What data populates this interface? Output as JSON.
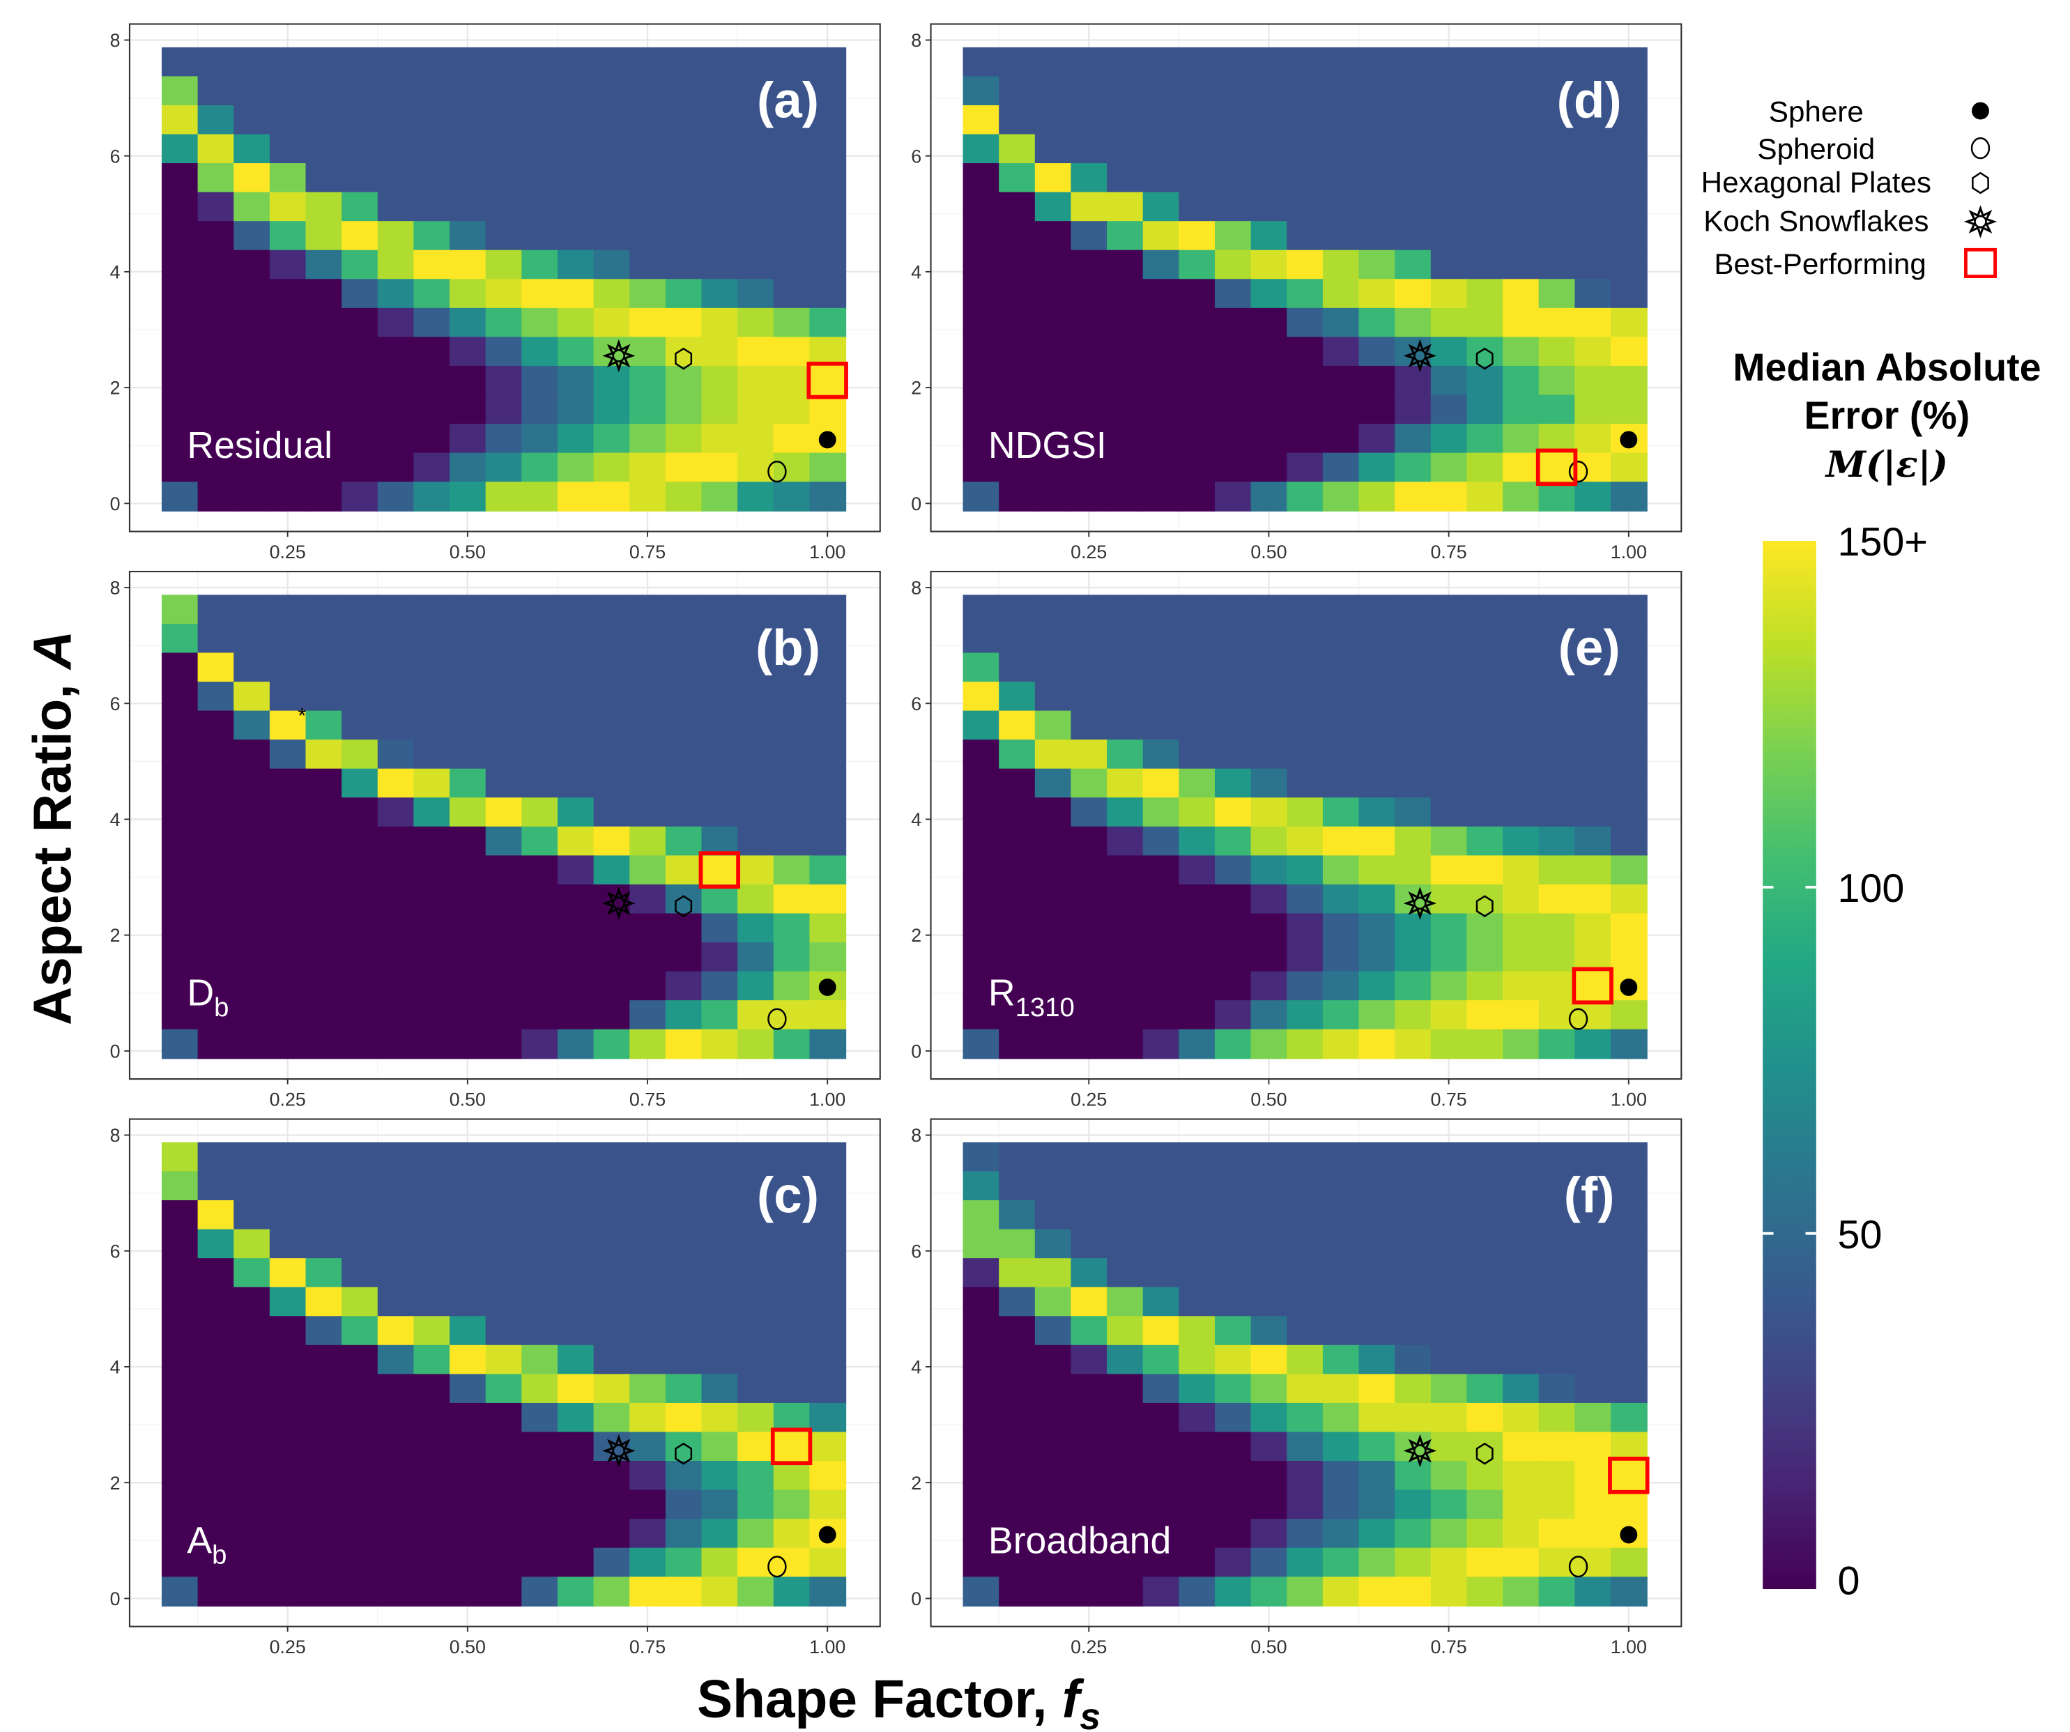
{
  "chart_data": {
    "type": "heatmap",
    "xlabel_prefix": "Shape Factor, ",
    "xlabel_var": "f",
    "xlabel_sub": "s",
    "ylabel_prefix": "Aspect Ratio, ",
    "ylabel_var": "A",
    "xlim": [
      0.075,
      1.025
    ],
    "ylim": [
      -0.125,
      8
    ],
    "x_ticks": [
      {
        "value": 0.25,
        "label": "0.25"
      },
      {
        "value": 0.5,
        "label": "0.50"
      },
      {
        "value": 0.75,
        "label": "0.75"
      },
      {
        "value": 1.0,
        "label": "1.00"
      }
    ],
    "y_ticks": [
      {
        "value": 0,
        "label": "0"
      },
      {
        "value": 2,
        "label": "2"
      },
      {
        "value": 4,
        "label": "4"
      },
      {
        "value": 6,
        "label": "6"
      },
      {
        "value": 8,
        "label": "8"
      }
    ],
    "grid": true,
    "cell_x_start": 0.1,
    "cell_x_step": 0.05,
    "cell_y_start": 0.125,
    "cell_y_step": 0.5,
    "grid_row_order": "top-to-bottom",
    "level_values": {
      "0": 0,
      "1": 9,
      "2": 18,
      "3": 30,
      "4": 50,
      "5": 70,
      "6": 80,
      "7": 93,
      "8": 105,
      "9": 132,
      "P": 150,
      "N": 111
    },
    "panels": [
      {
        "tag": "(a)",
        "method": "Residual",
        "method_sub": "",
        "best": [
          1.0,
          2.125
        ],
        "grid": [
          "NNNNNNNNNNNNNNNNNNN",
          "3NNNNNNNNNNNNNNNNNN",
          "16NNNNNNNNNNNNNNNNN",
          "515NNNNNNNNNNNNNNNN",
          "P303NNNNNNNNNNNNNNN",
          "P93124NNNNNNNNNNNNN",
          "PP8420247NNNNNNNNNN",
          "PPP9742002467NNNNNN",
          "PPPPP864210023467NN",
          "PPPPPP9864321001234",
          "PPPPPPPP98543311001",
          "PPPPPPPPP9875432110",
          "PPPPPPPPP9875432110",
          "PPPPPPPP98754321100",
          "PPPPPPP976432100123",
          "8PPPP98652200123567"
        ]
      },
      {
        "tag": "(d)",
        "method": "NDGSI",
        "method_sub": "",
        "best": [
          0.9,
          0.625
        ],
        "grid": [
          "NNNNNNNNNNNNNNNNNNN",
          "7NNNNNNNNNNNNNNNNNN",
          "0NNNNNNNNNNNNNNNNNN",
          "52NNNNNNNNNNNNNNNNN",
          "P405NNNNNNNNNNNNNNN",
          "PP5115NNNNNNNNNNNNN",
          "PPP841035NNNNNNNNNN",
          "PPPPP74210234NNNNNN",
          "PPPPPPP85421012038N",
          "PPPPPPPPP8743220001",
          "PPPPPPPPPP987543210",
          "PPPPPPPPPPPP9764322",
          "PPPPPPPPPPPP9864422",
          "PPPPPPPPPPP97543210",
          "PPPPPPPPP9854320001",
          "8PPPPPP974320013457"
        ]
      },
      {
        "tag": "(b)",
        "method": "D",
        "method_sub": "b",
        "best": [
          0.85,
          3.125
        ],
        "annotation": {
          "text": "*",
          "x": 0.27,
          "y": 5.85
        },
        "grid": [
          "3NNNNNNNNNNNNNNNNNN",
          "4NNNNNNNNNNNNNNNNNN",
          "P0NNNNNNNNNNNNNNNNN",
          "P81NNNNNNNNNNNNNNNN",
          "PP704NNNNNNNNNNNNNN",
          "PPP8128NNNNNNNNNNNN",
          "PPPPP5014NNNNNNNNNN",
          "PPPPPP952025NNNNNNN",
          "PPPPPPPPP7410247NNN",
          "PPPPPPPPPPP95310134",
          "PPPPPPPPPPPPP974200",
          "PPPPPPPPPPPPPPP8542",
          "PPPPPPPPPPPPPPP9743",
          "PPPPPPPPPPPPPP98532",
          "PPPPPPPPPPPPP854111",
          "8PPPPPPPPP974201247"
        ]
      },
      {
        "tag": "(e)",
        "method": "R",
        "method_sub": "1310",
        "best": [
          0.95,
          1.125
        ],
        "grid": [
          "NNNNNNNNNNNNNNNNNNN",
          "NNNNNNNNNNNNNNNNNNN",
          "4NNNNNNNNNNNNNNNNNN",
          "05NNNNNNNNNNNNNNNNN",
          "503NNNNNNNNNNNNNNNN",
          "P41147NNNNNNNNNNNNN",
          "PP7310357NNNNNNNNNN",
          "PPP8532012467NNNNNN",
          "PPPP98542100234567N",
          "PPPPPP9865322001223",
          "PPPPPPPP98653221001",
          "PPPPPPPPP9875432210",
          "PPPPPPPPP9875432210",
          "PPPPPPPP98754321100",
          "PPPPPPP975432100112",
          "8PPPP97432101223457"
        ]
      },
      {
        "tag": "(c)",
        "method": "A",
        "method_sub": "b",
        "best": [
          0.95,
          2.625
        ],
        "grid": [
          "2NNNNNNNNNNNNNNNNNN",
          "3NNNNNNNNNNNNNNNNNN",
          "P0NNNNNNNNNNNNNNNNN",
          "P52NNNNNNNNNNNNNNNN",
          "PP404NNNNNNNNNNNNNN",
          "PPP502NNNNNNNNNNNNN",
          "PPPP84025NNNNNNNNNN",
          "PPPPPP740135NNNNNNN",
          "PPPPPPPP84201347NNN",
          "PPPPPPPPPP853101246",
          "PPPPPPPPPPPP8743001",
          "PPPPPPPPPPPPP975420",
          "PPPPPPPPPPPPPP87431",
          "PPPPPPPPPPPPP975310",
          "PPPPPPPPPPPP8542001",
          "8PPPPPPPPP843001357"
        ]
      },
      {
        "tag": "(f)",
        "method": "Broadband",
        "method_sub": "",
        "best": [
          1.0,
          2.125
        ],
        "grid": [
          "8NNNNNNNNNNNNNNNNNN",
          "6NNNNNNNNNNNNNNNNNN",
          "37NNNNNNNNNNNNNNNNN",
          "337NNNNNNNNNNNNNNNN",
          "9226NNNNNNNNNNNNNNN",
          "P83036NNNNNNNNNNNNN",
          "PP8420247NNNNNNNNNN",
          "PPP9642102468NNNNNN",
          "PPPPP854311023468NN",
          "PPPPPP9854311101234",
          "PPPPPPPP97543220001",
          "PPPPPPPPP9874321100",
          "PPPPPPPPP9875431100",
          "PPPPPPPP98754321000",
          "PPPPPPP985432100112",
          "8PPPP98543100123467"
        ]
      }
    ],
    "markers": [
      {
        "name": "Sphere",
        "symbol": "filled-circle",
        "x": 1.0,
        "y": 1.1
      },
      {
        "name": "Spheroid",
        "symbol": "open-circle",
        "x": 0.93,
        "y": 0.55
      },
      {
        "name": "Hexagonal Plates",
        "symbol": "hexagon",
        "x": 0.8,
        "y": 2.5
      },
      {
        "name": "Koch Snowflakes",
        "symbol": "star",
        "x": 0.71,
        "y": 2.55
      }
    ],
    "legend": [
      {
        "label": "Sphere",
        "symbol": "filled-circle"
      },
      {
        "label": "Spheroid",
        "symbol": "open-circle"
      },
      {
        "label": "Hexagonal Plates",
        "symbol": "hexagon"
      },
      {
        "label": "Koch Snowflakes",
        "symbol": "star"
      },
      {
        "label": "Best-Performing",
        "symbol": "red-square"
      }
    ],
    "legend_position": "right",
    "best_color": "#ff0000",
    "colorbar": {
      "title_line1": "Median Absolute",
      "title_line2": "Error (%)",
      "formula": "M(|ε|)",
      "range": [
        0,
        150
      ],
      "colormap": "viridis-reversed",
      "ticks": [
        {
          "value": 150,
          "label": "150+"
        },
        {
          "value": 100,
          "label": "100"
        },
        {
          "value": 50,
          "label": "50"
        },
        {
          "value": 0,
          "label": "0"
        }
      ]
    }
  }
}
